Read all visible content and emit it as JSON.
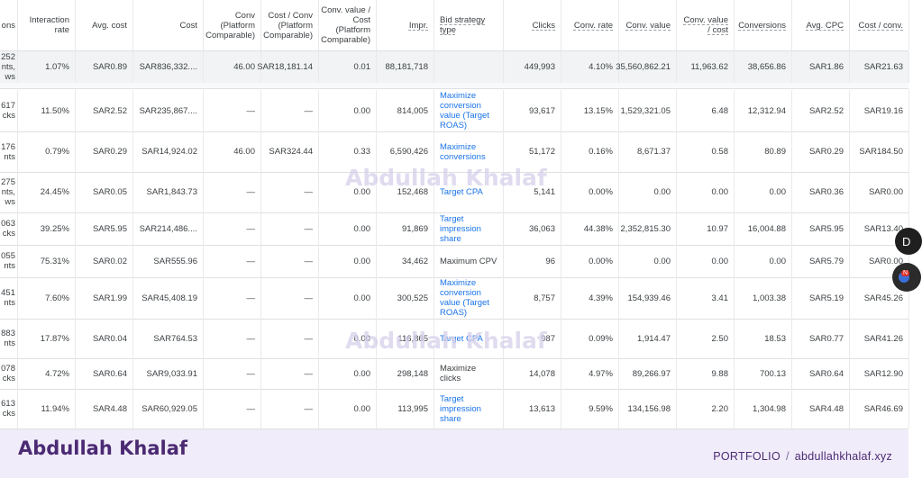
{
  "headers": [
    {
      "label": "ons",
      "underline": false
    },
    {
      "label": "Interaction rate",
      "underline": false
    },
    {
      "label": "Avg. cost",
      "underline": false
    },
    {
      "label": "Cost",
      "underline": false
    },
    {
      "label": "Conv (Platform Comparable)",
      "underline": false
    },
    {
      "label": "Cost / Conv (Platform Comparable)",
      "underline": false
    },
    {
      "label": "Conv. value / Cost (Platform Comparable)",
      "underline": false
    },
    {
      "label": "Impr.",
      "underline": true
    },
    {
      "label": "Bid strategy type",
      "underline": true
    },
    {
      "label": "Clicks",
      "underline": true
    },
    {
      "label": "Conv. rate",
      "underline": true
    },
    {
      "label": "Conv. value",
      "underline": true
    },
    {
      "label": "Conv. value / cost",
      "underline": true
    },
    {
      "label": "Conversions",
      "underline": true
    },
    {
      "label": "Avg. CPC",
      "underline": true
    },
    {
      "label": "Cost / conv.",
      "underline": true
    }
  ],
  "totals": [
    "252 nts, ws",
    "1.07%",
    "SAR0.89",
    "SAR836,332....",
    "46.00",
    "SAR18,181.14",
    "0.01",
    "88,181,718",
    "",
    "449,993",
    "4.10%",
    "35,560,862.21",
    "11,963.62",
    "38,656.86",
    "SAR1.86",
    "SAR21.63"
  ],
  "rows": [
    [
      "617 cks",
      "11.50%",
      "SAR2.52",
      "SAR235,867....",
      "—",
      "—",
      "0.00",
      "814,005",
      "Maximize conversion value (Target ROAS)",
      "93,617",
      "13.15%",
      "1,529,321.05",
      "6.48",
      "12,312.94",
      "SAR2.52",
      "SAR19.16"
    ],
    [
      "176 nts",
      "0.79%",
      "SAR0.29",
      "SAR14,924.02",
      "46.00",
      "SAR324.44",
      "0.33",
      "6,590,426",
      "Maximize conversions",
      "51,172",
      "0.16%",
      "8,671.37",
      "0.58",
      "80.89",
      "SAR0.29",
      "SAR184.50"
    ],
    [
      "275 nts, ws",
      "24.45%",
      "SAR0.05",
      "SAR1,843.73",
      "—",
      "—",
      "0.00",
      "152,468",
      "Target CPA",
      "5,141",
      "0.00%",
      "0.00",
      "0.00",
      "0.00",
      "SAR0.36",
      "SAR0.00"
    ],
    [
      "063 cks",
      "39.25%",
      "SAR5.95",
      "SAR214,486....",
      "—",
      "—",
      "0.00",
      "91,869",
      "Target impression share",
      "36,063",
      "44.38%",
      "2,352,815.30",
      "10.97",
      "16,004.88",
      "SAR5.95",
      "SAR13.40"
    ],
    [
      "055 nts",
      "75.31%",
      "SAR0.02",
      "SAR555.96",
      "—",
      "—",
      "0.00",
      "34,462",
      "Maximum CPV",
      "96",
      "0.00%",
      "0.00",
      "0.00",
      "0.00",
      "SAR5.79",
      "SAR0.00"
    ],
    [
      "451 nts",
      "7.60%",
      "SAR1.99",
      "SAR45,408.19",
      "—",
      "—",
      "0.00",
      "300,525",
      "Maximize conversion value (Target ROAS)",
      "8,757",
      "4.39%",
      "154,939.46",
      "3.41",
      "1,003.38",
      "SAR5.19",
      "SAR45.26"
    ],
    [
      "883 nts",
      "17.87%",
      "SAR0.04",
      "SAR764.53",
      "—",
      "—",
      "0.00",
      "116,865",
      "Target CPA",
      "987",
      "0.09%",
      "1,914.47",
      "2.50",
      "18.53",
      "SAR0.77",
      "SAR41.26"
    ],
    [
      "078 cks",
      "4.72%",
      "SAR0.64",
      "SAR9,033.91",
      "—",
      "—",
      "0.00",
      "298,148",
      "Maximize clicks",
      "14,078",
      "4.97%",
      "89,266.97",
      "9.88",
      "700.13",
      "SAR0.64",
      "SAR12.90"
    ],
    [
      "613 cks",
      "11.94%",
      "SAR4.48",
      "SAR60,929.05",
      "—",
      "—",
      "0.00",
      "113,995",
      "Target impression share",
      "13,613",
      "9.59%",
      "134,156.98",
      "2.20",
      "1,304.98",
      "SAR4.48",
      "SAR46.69"
    ]
  ],
  "bid_strategy_links": [
    true,
    true,
    true,
    true,
    false,
    true,
    true,
    false,
    true
  ],
  "watermark": "Abdullah Khalaf",
  "footer": {
    "brand": "Abdullah Khalaf",
    "portfolio_label": "PORTFOLIO",
    "slash": "/",
    "site": "abdullahkhalaf.xyz"
  },
  "floating": {
    "fab1_text": "D",
    "fab2_badge": "N"
  },
  "colors": {
    "link": "#1a73e8",
    "footer_bg": "#f1ecfa",
    "brand": "#4b2a73"
  }
}
